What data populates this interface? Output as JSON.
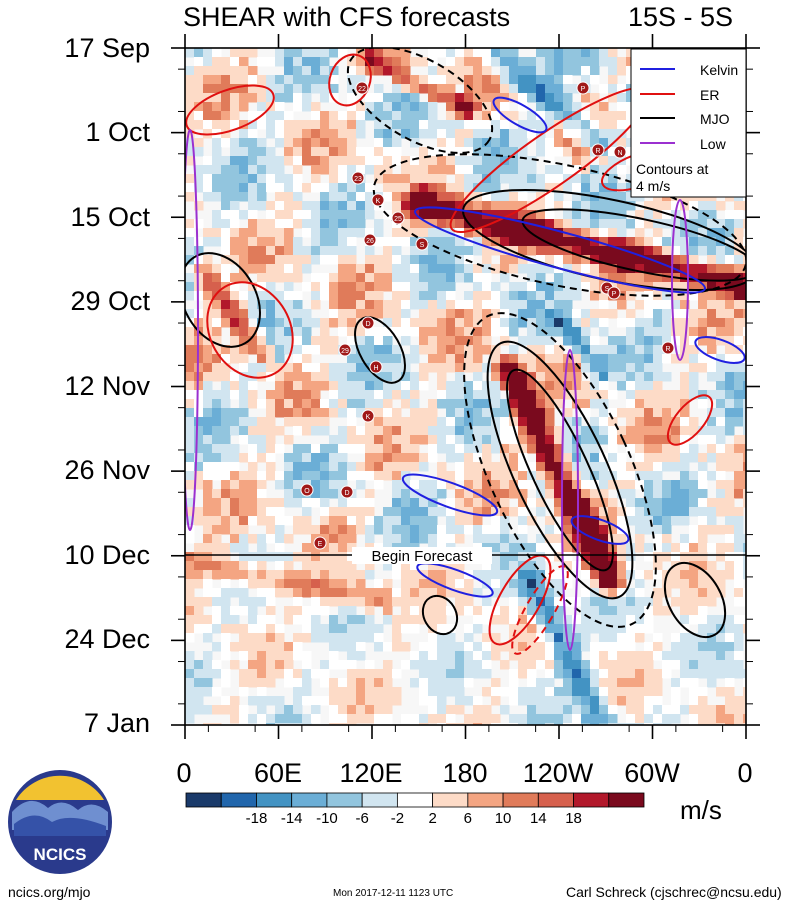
{
  "header": {
    "title": "SHEAR with CFS forecasts",
    "region": "15S - 5S"
  },
  "chart_data": {
    "type": "heatmap",
    "title": "SHEAR with CFS forecasts",
    "subtitle": "15S - 5S",
    "y_tick_labels": [
      "17 Sep",
      "1 Oct",
      "15 Oct",
      "29 Oct",
      "12 Nov",
      "26 Nov",
      "10 Dec",
      "24 Dec",
      "7 Jan"
    ],
    "x_tick_labels": [
      "0",
      "60E",
      "120E",
      "180",
      "120W",
      "60W",
      "0"
    ],
    "x_range_deg": [
      0,
      360
    ],
    "y_range": [
      "17 Sep",
      "7 Jan"
    ],
    "forecast_start": "10 Dec",
    "forecast_label": "Begin Forecast",
    "colorbar": {
      "units": "m/s",
      "tick_labels": [
        "-18",
        "-14",
        "-10",
        "-6",
        "-2",
        "2",
        "6",
        "10",
        "14",
        "18"
      ],
      "colors": [
        "#1a3a6a",
        "#2166ac",
        "#4393c3",
        "#6baed6",
        "#92c5de",
        "#d1e5f0",
        "#ffffff",
        "#fddbc7",
        "#f4a582",
        "#e07b5a",
        "#d6604d",
        "#b2182b",
        "#7a0a1e"
      ]
    },
    "legend": {
      "position": "top-right",
      "entries": [
        {
          "name": "Kelvin",
          "color": "#2020e0"
        },
        {
          "name": "ER",
          "color": "#e01010"
        },
        {
          "name": "MJO",
          "color": "#000000"
        },
        {
          "name": "Low",
          "color": "#9b30d0"
        }
      ],
      "note_line1": "Contours at",
      "note_line2": "4 m/s"
    },
    "storm_markers": [
      "22",
      "P",
      "R",
      "N",
      "23",
      "K",
      "25",
      "26",
      "S",
      "S",
      "P",
      "D",
      "29",
      "H",
      "R",
      "K",
      "O",
      "D",
      "E"
    ]
  },
  "logo": {
    "text": "NCICS"
  },
  "footer": {
    "left": "ncics.org/mjo",
    "middle": "Mon 2017-12-11 1123 UTC",
    "right": "Carl Schreck (cjschrec@ncsu.edu)"
  }
}
